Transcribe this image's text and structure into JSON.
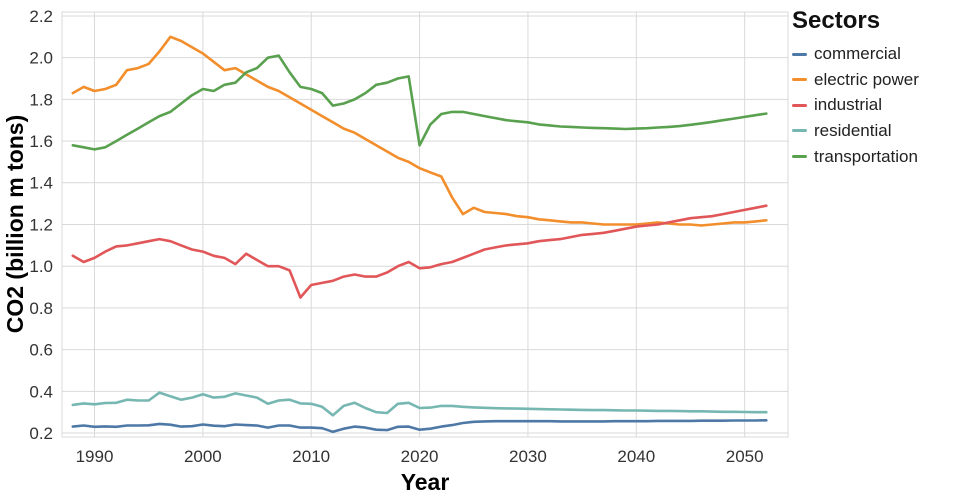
{
  "chart_data": {
    "type": "line",
    "title": "",
    "xlabel": "Year",
    "ylabel": "CO2 (billion m tons)",
    "legend_title": "Sectors",
    "legend_position": "right",
    "grid": true,
    "xlim": [
      1987,
      2054
    ],
    "ylim": [
      0.181,
      2.219
    ],
    "x_ticks": [
      1990,
      2000,
      2010,
      2020,
      2030,
      2040,
      2050
    ],
    "y_ticks": [
      0.2,
      0.4,
      0.6,
      0.8,
      1.0,
      1.2,
      1.4,
      1.6,
      1.8,
      2.0,
      2.2
    ],
    "x": [
      1988,
      1989,
      1990,
      1991,
      1992,
      1993,
      1994,
      1995,
      1996,
      1997,
      1998,
      1999,
      2000,
      2001,
      2002,
      2003,
      2004,
      2005,
      2006,
      2007,
      2008,
      2009,
      2010,
      2011,
      2012,
      2013,
      2014,
      2015,
      2016,
      2017,
      2018,
      2019,
      2020,
      2021,
      2022,
      2023,
      2024,
      2025,
      2026,
      2027,
      2028,
      2029,
      2030,
      2031,
      2032,
      2033,
      2034,
      2035,
      2036,
      2037,
      2038,
      2039,
      2040,
      2041,
      2042,
      2043,
      2044,
      2045,
      2046,
      2047,
      2048,
      2049,
      2050,
      2051,
      2052
    ],
    "series": [
      {
        "name": "commercial",
        "color": "#4e79a7",
        "values": [
          0.231,
          0.236,
          0.23,
          0.232,
          0.23,
          0.236,
          0.236,
          0.237,
          0.244,
          0.24,
          0.231,
          0.233,
          0.241,
          0.235,
          0.233,
          0.241,
          0.238,
          0.236,
          0.226,
          0.236,
          0.236,
          0.226,
          0.226,
          0.223,
          0.206,
          0.221,
          0.231,
          0.226,
          0.216,
          0.214,
          0.23,
          0.231,
          0.216,
          0.221,
          0.231,
          0.238,
          0.248,
          0.254,
          0.256,
          0.257,
          0.257,
          0.257,
          0.257,
          0.257,
          0.257,
          0.256,
          0.256,
          0.256,
          0.256,
          0.256,
          0.257,
          0.257,
          0.257,
          0.257,
          0.258,
          0.258,
          0.258,
          0.258,
          0.259,
          0.259,
          0.259,
          0.26,
          0.26,
          0.26,
          0.261
        ]
      },
      {
        "name": "electric power",
        "color": "#f28e2b",
        "values": [
          1.83,
          1.86,
          1.84,
          1.85,
          1.87,
          1.94,
          1.95,
          1.97,
          2.03,
          2.1,
          2.08,
          2.05,
          2.02,
          1.98,
          1.94,
          1.95,
          1.92,
          1.89,
          1.86,
          1.84,
          1.81,
          1.78,
          1.75,
          1.72,
          1.69,
          1.66,
          1.64,
          1.61,
          1.58,
          1.55,
          1.52,
          1.5,
          1.47,
          1.45,
          1.43,
          1.33,
          1.25,
          1.28,
          1.26,
          1.255,
          1.25,
          1.24,
          1.235,
          1.225,
          1.22,
          1.215,
          1.21,
          1.21,
          1.205,
          1.2,
          1.2,
          1.2,
          1.2,
          1.205,
          1.21,
          1.205,
          1.2,
          1.2,
          1.195,
          1.2,
          1.205,
          1.21,
          1.21,
          1.215,
          1.22
        ]
      },
      {
        "name": "industrial",
        "color": "#e15759",
        "values": [
          1.05,
          1.02,
          1.04,
          1.07,
          1.095,
          1.1,
          1.11,
          1.12,
          1.13,
          1.12,
          1.1,
          1.08,
          1.07,
          1.05,
          1.04,
          1.01,
          1.06,
          1.03,
          1.0,
          1.0,
          0.98,
          0.85,
          0.91,
          0.92,
          0.93,
          0.95,
          0.96,
          0.95,
          0.95,
          0.97,
          1.0,
          1.02,
          0.99,
          0.995,
          1.01,
          1.02,
          1.04,
          1.06,
          1.08,
          1.09,
          1.1,
          1.105,
          1.11,
          1.12,
          1.125,
          1.13,
          1.14,
          1.15,
          1.155,
          1.16,
          1.17,
          1.18,
          1.19,
          1.195,
          1.2,
          1.21,
          1.22,
          1.23,
          1.235,
          1.24,
          1.25,
          1.26,
          1.27,
          1.28,
          1.29
        ]
      },
      {
        "name": "residential",
        "color": "#76b7b2",
        "values": [
          0.335,
          0.342,
          0.338,
          0.344,
          0.345,
          0.36,
          0.356,
          0.356,
          0.394,
          0.376,
          0.36,
          0.37,
          0.386,
          0.37,
          0.374,
          0.39,
          0.38,
          0.37,
          0.34,
          0.356,
          0.36,
          0.342,
          0.34,
          0.326,
          0.285,
          0.33,
          0.345,
          0.32,
          0.3,
          0.296,
          0.34,
          0.345,
          0.32,
          0.322,
          0.33,
          0.33,
          0.326,
          0.323,
          0.321,
          0.319,
          0.318,
          0.317,
          0.316,
          0.315,
          0.314,
          0.313,
          0.312,
          0.311,
          0.31,
          0.31,
          0.309,
          0.308,
          0.308,
          0.307,
          0.306,
          0.306,
          0.305,
          0.304,
          0.304,
          0.303,
          0.302,
          0.302,
          0.301,
          0.3,
          0.3
        ]
      },
      {
        "name": "transportation",
        "color": "#59a14f",
        "values": [
          1.58,
          1.57,
          1.56,
          1.57,
          1.6,
          1.63,
          1.66,
          1.69,
          1.72,
          1.74,
          1.78,
          1.82,
          1.85,
          1.84,
          1.87,
          1.88,
          1.93,
          1.95,
          2.0,
          2.01,
          1.93,
          1.86,
          1.85,
          1.83,
          1.77,
          1.78,
          1.8,
          1.83,
          1.87,
          1.88,
          1.9,
          1.91,
          1.58,
          1.68,
          1.73,
          1.74,
          1.74,
          1.73,
          1.72,
          1.71,
          1.7,
          1.695,
          1.69,
          1.68,
          1.675,
          1.67,
          1.668,
          1.665,
          1.663,
          1.662,
          1.66,
          1.658,
          1.66,
          1.662,
          1.665,
          1.668,
          1.672,
          1.678,
          1.685,
          1.692,
          1.7,
          1.708,
          1.716,
          1.724,
          1.732
        ]
      }
    ]
  }
}
